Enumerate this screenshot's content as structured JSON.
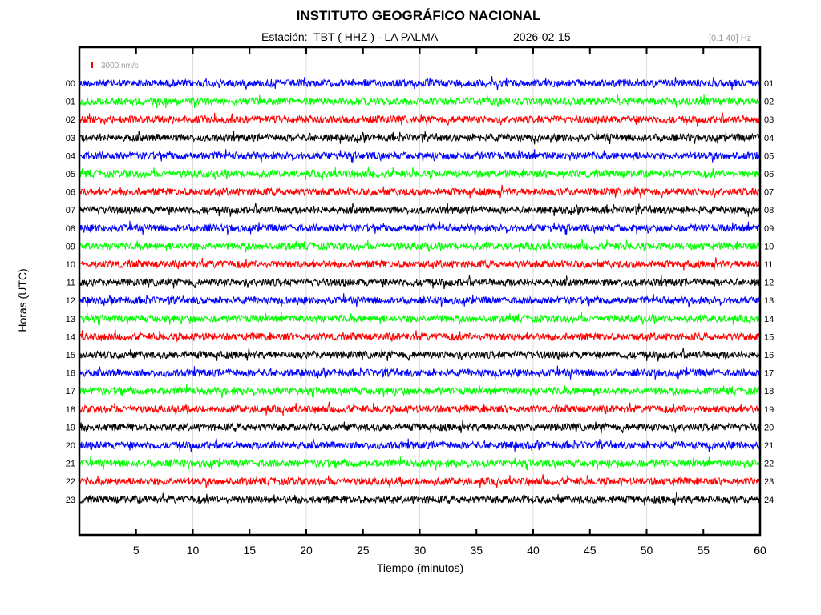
{
  "chart_data": {
    "type": "line",
    "title": "INSTITUTO GEOGRÁFICO NACIONAL",
    "subtitle": "Estación:  TBT ( HHZ ) - LA PALMA",
    "date": "2026-02-15",
    "filter": "[0.1 40] Hz",
    "scale_label": "3000 nm/s",
    "xlabel": "Tiempo (minutos)",
    "ylabel": "Horas (UTC)",
    "xlim": [
      0,
      60
    ],
    "xticks": [
      "5",
      "10",
      "15",
      "20",
      "25",
      "30",
      "35",
      "40",
      "45",
      "50",
      "55",
      "60"
    ],
    "grid": "vertical every 10 minutes",
    "left_labels": [
      "00",
      "01",
      "02",
      "03",
      "04",
      "05",
      "06",
      "07",
      "08",
      "09",
      "10",
      "11",
      "12",
      "13",
      "14",
      "15",
      "16",
      "17",
      "18",
      "19",
      "20",
      "21",
      "22",
      "23"
    ],
    "right_labels": [
      "01",
      "02",
      "03",
      "04",
      "05",
      "06",
      "07",
      "08",
      "09",
      "10",
      "11",
      "12",
      "13",
      "14",
      "15",
      "16",
      "17",
      "18",
      "19",
      "20",
      "21",
      "22",
      "23",
      "24"
    ],
    "trace_colors": [
      "#0000ff",
      "#00ff00",
      "#ff0000",
      "#000000"
    ],
    "scale_color": "#ff0000"
  }
}
